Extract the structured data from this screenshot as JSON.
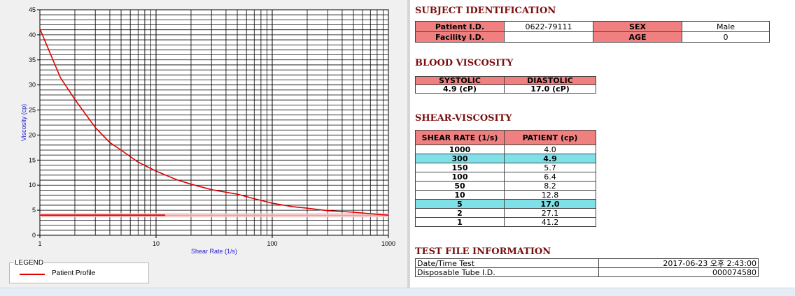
{
  "chart_data": {
    "type": "line",
    "xlabel": "Shear Rate (1/s)",
    "ylabel": "Viscosity (cp)",
    "x_scale": "log",
    "xlim": [
      1,
      1000
    ],
    "ylim": [
      0,
      45
    ],
    "x_ticks": [
      "1",
      "10",
      "100",
      "1000"
    ],
    "y_ticks": [
      "0",
      "5",
      "10",
      "15",
      "20",
      "25",
      "30",
      "35",
      "40",
      "45"
    ],
    "grid": true,
    "series": [
      {
        "name": "Patient Profile",
        "color": "#e00000",
        "x": [
          1,
          1.5,
          2,
          3,
          4,
          5,
          7,
          10,
          15,
          20,
          30,
          50,
          70,
          100,
          150,
          200,
          300,
          500,
          700,
          1000
        ],
        "y": [
          41.2,
          31.5,
          27.1,
          21.5,
          18.5,
          17.0,
          14.6,
          12.8,
          11.1,
          10.2,
          9.1,
          8.2,
          7.3,
          6.4,
          5.7,
          5.4,
          4.9,
          4.6,
          4.3,
          4.0
        ]
      }
    ],
    "reference_band": {
      "y": 4.0,
      "color": "#e00000"
    }
  },
  "legend": {
    "title": "LEGEND",
    "label": "Patient Profile",
    "color": "#e00000"
  },
  "subject": {
    "title": "SUBJECT IDENTIFICATION",
    "patient_id_label": "Patient I.D.",
    "patient_id_value": "0622-79111",
    "sex_label": "SEX",
    "sex_value": "Male",
    "facility_id_label": "Facility I.D.",
    "facility_id_value": "",
    "age_label": "AGE",
    "age_value": "0"
  },
  "blood": {
    "title": "BLOOD VISCOSITY",
    "systolic_label": "SYSTOLIC",
    "diastolic_label": "DIASTOLIC",
    "systolic_value": "4.9 (cP)",
    "diastolic_value": "17.0 (cP)"
  },
  "shear": {
    "title": "SHEAR-VISCOSITY",
    "col1": "SHEAR RATE (1/s)",
    "col2": "PATIENT (cp)",
    "rows": [
      {
        "rate": "1000",
        "val": "4.0",
        "hl": false
      },
      {
        "rate": "300",
        "val": "4.9",
        "hl": true
      },
      {
        "rate": "150",
        "val": "5.7",
        "hl": false
      },
      {
        "rate": "100",
        "val": "6.4",
        "hl": false
      },
      {
        "rate": "50",
        "val": "8.2",
        "hl": false
      },
      {
        "rate": "10",
        "val": "12.8",
        "hl": false
      },
      {
        "rate": "5",
        "val": "17.0",
        "hl": true
      },
      {
        "rate": "2",
        "val": "27.1",
        "hl": false
      },
      {
        "rate": "1",
        "val": "41.2",
        "hl": false
      }
    ]
  },
  "testfile": {
    "title": "TEST FILE INFORMATION",
    "datetime_label": "Date/Time Test",
    "datetime_value": "2017-06-23  오후 2:43:00",
    "tube_label": "Disposable Tube I.D.",
    "tube_value": "000074580"
  }
}
